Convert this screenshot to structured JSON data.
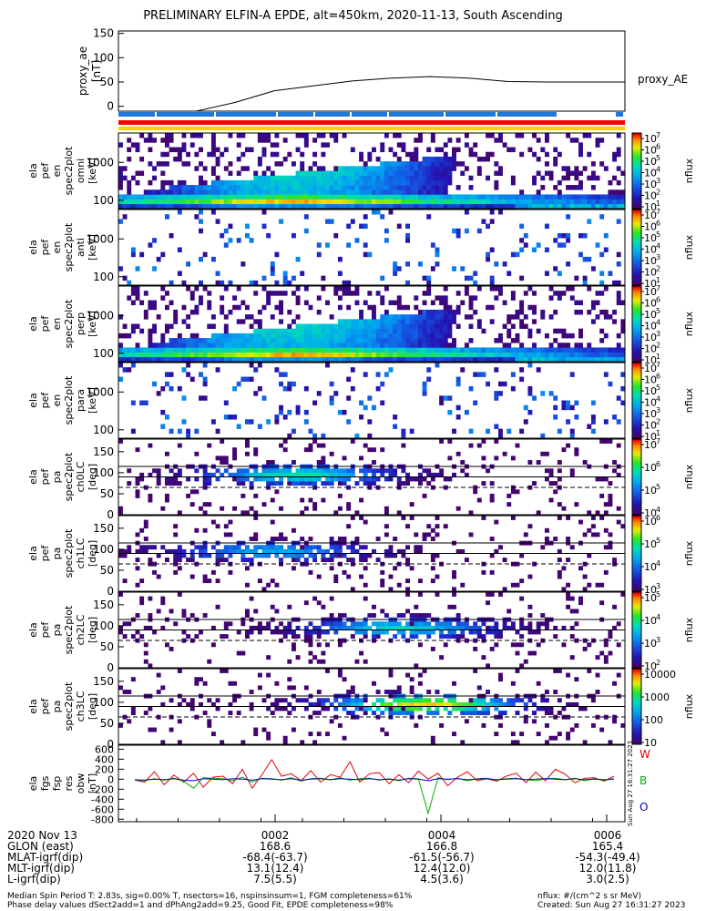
{
  "title": "PRELIMINARY ELFIN-A EPDE, alt=450km, 2020-11-13, South Ascending",
  "colors": {
    "red": "#e00000",
    "green": "#00b000",
    "blue": "#0000c0",
    "bar_blue": "#1f78d8",
    "bar_red": "#ff0000",
    "bar_yellow": "#ffd000"
  },
  "chart_data": [
    {
      "type": "line",
      "panel": "proxy_ae",
      "ylabel": "proxy_ae [nT]",
      "legend": "proxy_AE",
      "ylim": [
        -10,
        155
      ],
      "yticks": [
        "150",
        "100",
        "50",
        "0"
      ],
      "x_time_min": [
        0.0,
        0.5,
        1.0,
        1.5,
        2.0,
        2.5,
        3.0,
        3.5,
        4.0,
        4.5,
        5.0,
        5.5,
        6.0,
        6.5
      ],
      "values": [
        -10,
        -10,
        -10,
        8,
        32,
        42,
        52,
        58,
        61,
        58,
        51,
        50,
        50,
        50
      ]
    },
    {
      "type": "heatmap",
      "panel": "ela_pef_en_spec2plot_omni",
      "ylabel": "ela pef en spec2plot omni [keV]",
      "ylog": true,
      "yticks": [
        "1000",
        "100"
      ],
      "zlabel": "nflux",
      "zlog": true,
      "zticks": [
        "10^7",
        "10^6",
        "10^5",
        "10^4",
        "10^3",
        "10^2",
        "10^1"
      ]
    },
    {
      "type": "heatmap",
      "panel": "ela_pef_en_spec2plot_anti",
      "ylabel": "ela pef en spec2plot anti [keV]",
      "ylog": true,
      "yticks": [
        "1000",
        "100"
      ],
      "zlabel": "nflux",
      "zlog": true,
      "zticks": [
        "10^7",
        "10^6",
        "10^5",
        "10^4",
        "10^3",
        "10^2",
        "10^1"
      ]
    },
    {
      "type": "heatmap",
      "panel": "ela_pef_en_spec2plot_perp",
      "ylabel": "ela pef en spec2plot perp [keV]",
      "ylog": true,
      "yticks": [
        "1000",
        "100"
      ],
      "zlabel": "nflux",
      "zlog": true,
      "zticks": [
        "10^7",
        "10^6",
        "10^5",
        "10^4",
        "10^3",
        "10^2",
        "10^1"
      ]
    },
    {
      "type": "heatmap",
      "panel": "ela_pef_en_spec2plot_para",
      "ylabel": "ela pef en spec2plot para [keV]",
      "ylog": true,
      "yticks": [
        "1000",
        "100"
      ],
      "zlabel": "nflux",
      "zlog": true,
      "zticks": [
        "10^7",
        "10^6",
        "10^5",
        "10^4",
        "10^3",
        "10^2",
        "10^1"
      ]
    },
    {
      "type": "heatmap",
      "panel": "ela_pef_pa_spec2plot_ch0LC",
      "ylabel": "ela pef pa spec2plot ch0LC [deg]",
      "yticks": [
        "150",
        "100",
        "50",
        "0"
      ],
      "ylim": [
        0,
        180
      ],
      "zlabel": "nflux",
      "zlog": true,
      "zticks": [
        "10^7",
        "10^6",
        "10^5",
        "10^4"
      ]
    },
    {
      "type": "heatmap",
      "panel": "ela_pef_pa_spec2plot_ch1LC",
      "ylabel": "ela pef pa spec2plot ch1LC [deg]",
      "yticks": [
        "150",
        "100",
        "50",
        "0"
      ],
      "ylim": [
        0,
        180
      ],
      "zlabel": "nflux",
      "zlog": true,
      "zticks": [
        "10^6",
        "10^5",
        "10^4",
        "10^3"
      ]
    },
    {
      "type": "heatmap",
      "panel": "ela_pef_pa_spec2plot_ch2LC",
      "ylabel": "ela pef pa spec2plot ch2LC [deg]",
      "yticks": [
        "150",
        "100",
        "50",
        "0"
      ],
      "ylim": [
        0,
        180
      ],
      "zlabel": "nflux",
      "zlog": true,
      "zticks": [
        "10^5",
        "10^4",
        "10^3",
        "10^2"
      ]
    },
    {
      "type": "heatmap",
      "panel": "ela_pef_pa_spec2plot_ch3LC",
      "ylabel": "ela pef pa spec2plot ch3LC [deg]",
      "yticks": [
        "150",
        "100",
        "50",
        "0"
      ],
      "ylim": [
        0,
        180
      ],
      "zlabel": "nflux",
      "zticks": [
        "10000",
        "1000",
        "100",
        "10"
      ]
    },
    {
      "type": "line",
      "panel": "ela_fgs_fsp_res_obw",
      "ylabel": "ela fgs fsp res obw [nT]",
      "ylim": [
        -850,
        680
      ],
      "yticks": [
        "600",
        "400",
        "200",
        "0",
        "-200",
        "-400",
        "-600",
        "-800"
      ],
      "legend": [
        "W",
        "B",
        "O"
      ],
      "stamp": "Sun Aug 27 16:31:27 2023",
      "series": [
        {
          "name": "W",
          "values": [
            -20,
            -60,
            150,
            -110,
            80,
            -60,
            120,
            -160,
            40,
            60,
            -90,
            200,
            -180,
            90,
            390,
            60,
            110,
            -30,
            170,
            -60,
            90,
            40,
            350,
            -60,
            110,
            130,
            -90,
            90,
            -70,
            160,
            0,
            120,
            -130,
            40,
            150,
            -30,
            10,
            -40,
            60,
            120,
            -70,
            140,
            -30,
            200,
            100,
            -70,
            20,
            30,
            -40,
            60
          ]
        },
        {
          "name": "B",
          "values": [
            -20,
            -30,
            10,
            -20,
            20,
            -40,
            -180,
            30,
            20,
            10,
            -30,
            40,
            -60,
            20,
            10,
            -20,
            30,
            -40,
            10,
            20,
            -10,
            30,
            -20,
            10,
            20,
            -20,
            10,
            -30,
            20,
            10,
            -680,
            30,
            -10,
            20,
            -30,
            10,
            20,
            -20,
            10,
            20,
            -10,
            -30,
            10,
            20,
            -10,
            20,
            -30,
            10,
            -20,
            10
          ]
        },
        {
          "name": "O",
          "values": [
            -10,
            -20,
            0,
            -10,
            10,
            -20,
            -30,
            10,
            0,
            -10,
            10,
            0,
            -20,
            10,
            0,
            -10,
            10,
            -20,
            0,
            10,
            -10,
            10,
            0,
            -10,
            10,
            -10,
            0,
            -20,
            10,
            0,
            -30,
            10,
            0,
            10,
            -10,
            0,
            10,
            -10,
            0,
            10,
            -10,
            0,
            10,
            0,
            -10,
            10,
            -10,
            0,
            -10,
            0
          ]
        }
      ]
    }
  ],
  "footer": {
    "rows": [
      {
        "label": "2020 Nov 13",
        "v1": "0002",
        "v2": "0004",
        "v3": "0006"
      },
      {
        "label": "GLON (east)",
        "v1": "168.6",
        "v2": "166.8",
        "v3": "165.4"
      },
      {
        "label": "MLAT-igrf(dip)",
        "v1": "-68.4(-63.7)",
        "v2": "-61.5(-56.7)",
        "v3": "-54.3(-49.4)"
      },
      {
        "label": "MLT-igrf(dip)",
        "v1": "13.1(12.4)",
        "v2": "12.4(12.0)",
        "v3": "12.0(11.8)"
      },
      {
        "label": "L-igrf(dip)",
        "v1": "7.5(5.5)",
        "v2": "4.5(3.6)",
        "v3": "3.0(2.5)"
      }
    ],
    "note1": "Median Spin Period T: 2.83s, sig=0.00% T, nsectors=16, nspinsinsum=1, FGM completeness=61%",
    "note2": "Phase delay values dSect2add=1 and dPhAng2add=9.25, Good Fit, EPDE completeness=98%",
    "units": "nflux: #/(cm^2 s sr MeV)",
    "created": "Created: Sun Aug 27 16:31:27 2023"
  }
}
